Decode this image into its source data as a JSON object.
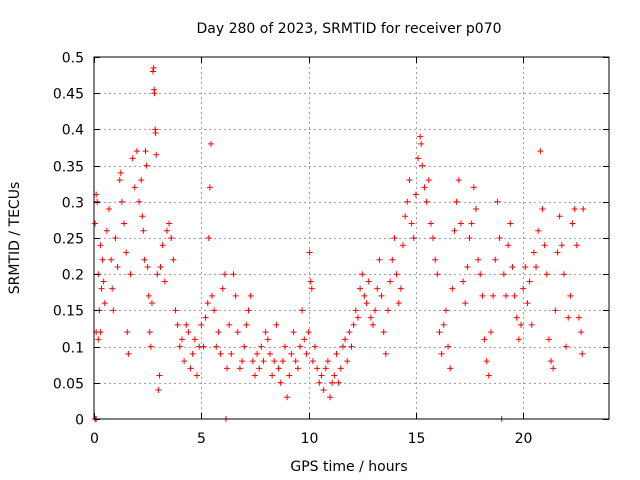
{
  "chart_data": {
    "type": "scatter",
    "title": "Day 280 of 2023, SRMTID for receiver p070",
    "xlabel": "GPS time / hours",
    "ylabel": "SRMTID / TECUs",
    "xlim": [
      0,
      24
    ],
    "ylim": [
      0,
      0.5
    ],
    "x_ticks": [
      0,
      5,
      10,
      15,
      20
    ],
    "x_tick_labels": [
      "0",
      "5",
      "10",
      "15",
      "20"
    ],
    "y_ticks": [
      0,
      0.05,
      0.1,
      0.15,
      0.2,
      0.25,
      0.3,
      0.35,
      0.4,
      0.45,
      0.5
    ],
    "y_tick_labels": [
      "0",
      "0.05",
      "0.1",
      "0.15",
      "0.2",
      "0.25",
      "0.3",
      "0.35",
      "0.4",
      "0.45",
      "0.5"
    ],
    "grid": true,
    "marker": "+",
    "color": "#ff0000",
    "series": [
      {
        "name": "SRMTID",
        "points": [
          [
            0.05,
            0.27
          ],
          [
            0.1,
            0.31
          ],
          [
            0.15,
            0.3
          ],
          [
            0.1,
            0.0
          ],
          [
            0.05,
            0.0
          ],
          [
            0.2,
            0.2
          ],
          [
            0.25,
            0.15
          ],
          [
            0.3,
            0.12
          ],
          [
            0.35,
            0.18
          ],
          [
            0.4,
            0.22
          ],
          [
            0.1,
            0.12
          ],
          [
            0.2,
            0.11
          ],
          [
            0.3,
            0.24
          ],
          [
            0.45,
            0.19
          ],
          [
            0.5,
            0.16
          ],
          [
            0.6,
            0.26
          ],
          [
            0.7,
            0.29
          ],
          [
            0.8,
            0.22
          ],
          [
            0.85,
            0.18
          ],
          [
            0.9,
            0.15
          ],
          [
            1.0,
            0.25
          ],
          [
            1.1,
            0.21
          ],
          [
            1.2,
            0.33
          ],
          [
            1.25,
            0.34
          ],
          [
            1.3,
            0.3
          ],
          [
            1.4,
            0.27
          ],
          [
            1.5,
            0.23
          ],
          [
            1.55,
            0.12
          ],
          [
            1.6,
            0.09
          ],
          [
            1.7,
            0.2
          ],
          [
            1.8,
            0.36
          ],
          [
            1.9,
            0.32
          ],
          [
            2.0,
            0.37
          ],
          [
            2.1,
            0.3
          ],
          [
            2.2,
            0.33
          ],
          [
            2.25,
            0.28
          ],
          [
            2.3,
            0.26
          ],
          [
            2.35,
            0.22
          ],
          [
            2.4,
            0.37
          ],
          [
            2.45,
            0.35
          ],
          [
            2.5,
            0.21
          ],
          [
            2.55,
            0.17
          ],
          [
            2.6,
            0.12
          ],
          [
            2.65,
            0.1
          ],
          [
            2.7,
            0.16
          ],
          [
            2.75,
            0.48
          ],
          [
            2.78,
            0.485
          ],
          [
            2.8,
            0.455
          ],
          [
            2.82,
            0.45
          ],
          [
            2.85,
            0.4
          ],
          [
            2.87,
            0.395
          ],
          [
            2.9,
            0.365
          ],
          [
            2.95,
            0.2
          ],
          [
            3.0,
            0.04
          ],
          [
            3.05,
            0.06
          ],
          [
            3.1,
            0.21
          ],
          [
            3.2,
            0.24
          ],
          [
            3.3,
            0.19
          ],
          [
            3.4,
            0.26
          ],
          [
            3.5,
            0.27
          ],
          [
            3.6,
            0.25
          ],
          [
            3.7,
            0.22
          ],
          [
            3.8,
            0.15
          ],
          [
            3.9,
            0.13
          ],
          [
            4.0,
            0.1
          ],
          [
            4.1,
            0.11
          ],
          [
            4.2,
            0.08
          ],
          [
            4.3,
            0.13
          ],
          [
            4.4,
            0.12
          ],
          [
            4.5,
            0.07
          ],
          [
            4.6,
            0.09
          ],
          [
            4.7,
            0.11
          ],
          [
            4.8,
            0.06
          ],
          [
            4.9,
            0.1
          ],
          [
            5.0,
            0.13
          ],
          [
            5.1,
            0.1
          ],
          [
            5.2,
            0.14
          ],
          [
            5.3,
            0.16
          ],
          [
            5.35,
            0.25
          ],
          [
            5.4,
            0.32
          ],
          [
            5.45,
            0.38
          ],
          [
            5.5,
            0.17
          ],
          [
            5.6,
            0.15
          ],
          [
            5.7,
            0.1
          ],
          [
            5.8,
            0.12
          ],
          [
            5.9,
            0.09
          ],
          [
            6.0,
            0.18
          ],
          [
            6.1,
            0.2
          ],
          [
            6.15,
            0.0
          ],
          [
            6.2,
            0.07
          ],
          [
            6.3,
            0.13
          ],
          [
            6.4,
            0.09
          ],
          [
            6.5,
            0.2
          ],
          [
            6.6,
            0.17
          ],
          [
            6.7,
            0.12
          ],
          [
            6.8,
            0.07
          ],
          [
            6.9,
            0.08
          ],
          [
            7.0,
            0.1
          ],
          [
            7.1,
            0.13
          ],
          [
            7.2,
            0.15
          ],
          [
            7.3,
            0.17
          ],
          [
            7.4,
            0.08
          ],
          [
            7.5,
            0.06
          ],
          [
            7.6,
            0.09
          ],
          [
            7.7,
            0.07
          ],
          [
            7.8,
            0.1
          ],
          [
            7.9,
            0.08
          ],
          [
            8.0,
            0.12
          ],
          [
            8.1,
            0.11
          ],
          [
            8.2,
            0.09
          ],
          [
            8.3,
            0.06
          ],
          [
            8.4,
            0.08
          ],
          [
            8.5,
            0.13
          ],
          [
            8.6,
            0.07
          ],
          [
            8.7,
            0.05
          ],
          [
            8.8,
            0.08
          ],
          [
            8.9,
            0.1
          ],
          [
            9.0,
            0.03
          ],
          [
            9.1,
            0.06
          ],
          [
            9.2,
            0.09
          ],
          [
            9.3,
            0.12
          ],
          [
            9.4,
            0.08
          ],
          [
            9.5,
            0.07
          ],
          [
            9.6,
            0.1
          ],
          [
            9.7,
            0.15
          ],
          [
            9.8,
            0.11
          ],
          [
            9.9,
            0.09
          ],
          [
            10.0,
            0.12
          ],
          [
            10.05,
            0.23
          ],
          [
            10.1,
            0.19
          ],
          [
            10.15,
            0.18
          ],
          [
            10.2,
            0.08
          ],
          [
            10.3,
            0.1
          ],
          [
            10.4,
            0.07
          ],
          [
            10.5,
            0.05
          ],
          [
            10.6,
            0.06
          ],
          [
            10.7,
            0.04
          ],
          [
            10.8,
            0.07
          ],
          [
            10.9,
            0.08
          ],
          [
            11.0,
            0.03
          ],
          [
            11.1,
            0.05
          ],
          [
            11.2,
            0.06
          ],
          [
            11.3,
            0.09
          ],
          [
            11.4,
            0.05
          ],
          [
            11.5,
            0.07
          ],
          [
            11.6,
            0.1
          ],
          [
            11.7,
            0.11
          ],
          [
            11.8,
            0.08
          ],
          [
            11.9,
            0.12
          ],
          [
            12.0,
            0.1
          ],
          [
            12.1,
            0.13
          ],
          [
            12.2,
            0.15
          ],
          [
            12.3,
            0.14
          ],
          [
            12.4,
            0.18
          ],
          [
            12.5,
            0.2
          ],
          [
            12.6,
            0.17
          ],
          [
            12.7,
            0.16
          ],
          [
            12.8,
            0.19
          ],
          [
            12.9,
            0.14
          ],
          [
            13.0,
            0.13
          ],
          [
            13.1,
            0.15
          ],
          [
            13.2,
            0.18
          ],
          [
            13.3,
            0.22
          ],
          [
            13.4,
            0.17
          ],
          [
            13.5,
            0.12
          ],
          [
            13.6,
            0.09
          ],
          [
            13.7,
            0.15
          ],
          [
            13.8,
            0.19
          ],
          [
            13.9,
            0.22
          ],
          [
            14.0,
            0.25
          ],
          [
            14.1,
            0.2
          ],
          [
            14.2,
            0.16
          ],
          [
            14.3,
            0.18
          ],
          [
            14.4,
            0.24
          ],
          [
            14.5,
            0.28
          ],
          [
            14.6,
            0.3
          ],
          [
            14.7,
            0.33
          ],
          [
            14.8,
            0.27
          ],
          [
            14.9,
            0.25
          ],
          [
            15.0,
            0.31
          ],
          [
            15.1,
            0.36
          ],
          [
            15.2,
            0.39
          ],
          [
            15.25,
            0.38
          ],
          [
            15.3,
            0.35
          ],
          [
            15.4,
            0.32
          ],
          [
            15.5,
            0.3
          ],
          [
            15.6,
            0.33
          ],
          [
            15.7,
            0.27
          ],
          [
            15.8,
            0.25
          ],
          [
            15.9,
            0.22
          ],
          [
            16.0,
            0.2
          ],
          [
            16.1,
            0.12
          ],
          [
            16.2,
            0.09
          ],
          [
            16.3,
            0.13
          ],
          [
            16.4,
            0.15
          ],
          [
            16.5,
            0.1
          ],
          [
            16.6,
            0.07
          ],
          [
            16.7,
            0.18
          ],
          [
            16.8,
            0.26
          ],
          [
            16.9,
            0.3
          ],
          [
            17.0,
            0.33
          ],
          [
            17.1,
            0.27
          ],
          [
            17.2,
            0.19
          ],
          [
            17.3,
            0.16
          ],
          [
            17.4,
            0.21
          ],
          [
            17.5,
            0.25
          ],
          [
            17.6,
            0.27
          ],
          [
            17.7,
            0.32
          ],
          [
            17.8,
            0.29
          ],
          [
            17.9,
            0.22
          ],
          [
            18.0,
            0.2
          ],
          [
            18.1,
            0.17
          ],
          [
            18.2,
            0.11
          ],
          [
            18.3,
            0.08
          ],
          [
            18.4,
            0.06
          ],
          [
            18.5,
            0.12
          ],
          [
            18.6,
            0.17
          ],
          [
            18.7,
            0.22
          ],
          [
            18.8,
            0.3
          ],
          [
            18.9,
            0.25
          ],
          [
            19.0,
            0.0
          ],
          [
            19.1,
            0.2
          ],
          [
            19.2,
            0.17
          ],
          [
            19.3,
            0.24
          ],
          [
            19.4,
            0.27
          ],
          [
            19.5,
            0.21
          ],
          [
            19.6,
            0.17
          ],
          [
            19.7,
            0.14
          ],
          [
            19.8,
            0.11
          ],
          [
            19.9,
            0.13
          ],
          [
            20.0,
            0.18
          ],
          [
            20.1,
            0.21
          ],
          [
            20.2,
            0.16
          ],
          [
            20.3,
            0.19
          ],
          [
            20.4,
            0.13
          ],
          [
            20.5,
            0.23
          ],
          [
            20.6,
            0.21
          ],
          [
            20.7,
            0.26
          ],
          [
            20.8,
            0.37
          ],
          [
            20.9,
            0.29
          ],
          [
            21.0,
            0.24
          ],
          [
            21.1,
            0.2
          ],
          [
            21.2,
            0.11
          ],
          [
            21.3,
            0.08
          ],
          [
            21.4,
            0.07
          ],
          [
            21.5,
            0.15
          ],
          [
            21.6,
            0.23
          ],
          [
            21.7,
            0.28
          ],
          [
            21.8,
            0.24
          ],
          [
            21.9,
            0.2
          ],
          [
            22.0,
            0.1
          ],
          [
            22.1,
            0.14
          ],
          [
            22.2,
            0.17
          ],
          [
            22.3,
            0.27
          ],
          [
            22.4,
            0.29
          ],
          [
            22.5,
            0.24
          ],
          [
            22.6,
            0.14
          ],
          [
            22.7,
            0.12
          ],
          [
            22.75,
            0.09
          ],
          [
            22.8,
            0.29
          ]
        ]
      }
    ]
  }
}
